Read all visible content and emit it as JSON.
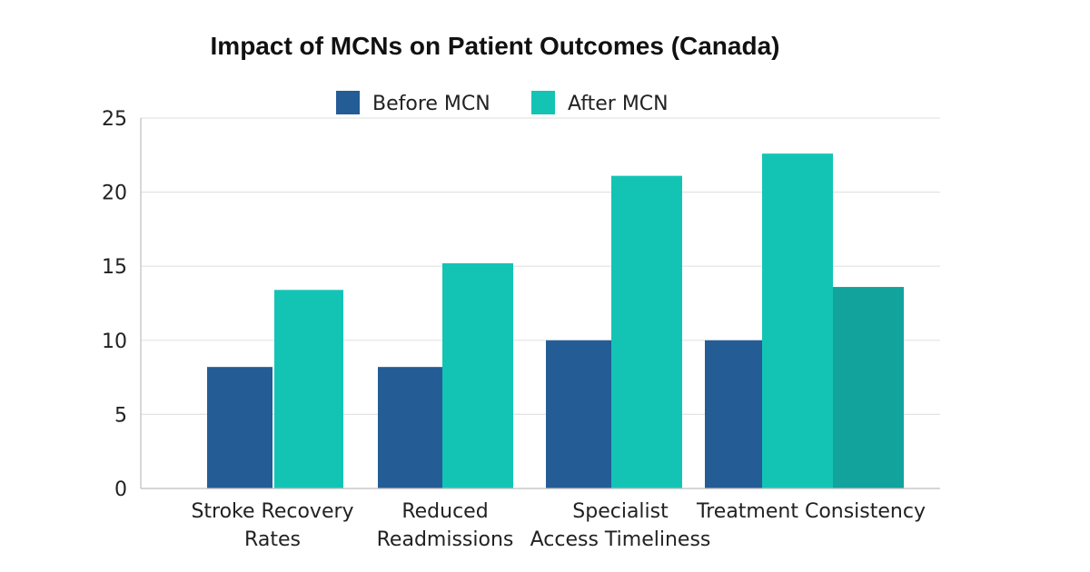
{
  "chart_data": {
    "type": "bar",
    "title": "Impact of MCNs on Patient Outcomes (Canada)",
    "xlabel": "",
    "ylabel": "",
    "ylim": [
      0,
      25
    ],
    "yticks": [
      0,
      5,
      10,
      15,
      20,
      25
    ],
    "grid": true,
    "legend_position": "top-center",
    "categories": [
      [
        "Stroke Recovery",
        "Rates"
      ],
      [
        "Reduced",
        "Readmissions"
      ],
      [
        "Specialist",
        "Access Timeliness"
      ],
      [
        "Treatment Consistency"
      ]
    ],
    "series": [
      {
        "name": "Before MCN",
        "color": "#245c96",
        "values": [
          8.2,
          8.2,
          10,
          10
        ]
      },
      {
        "name": "After MCN",
        "color": "#13c4b5",
        "values": [
          13.4,
          15.2,
          21.1,
          22.6
        ]
      }
    ],
    "extra_bars": [
      {
        "category_index": 3,
        "value": 13.6,
        "color": "#12a39d"
      }
    ]
  }
}
